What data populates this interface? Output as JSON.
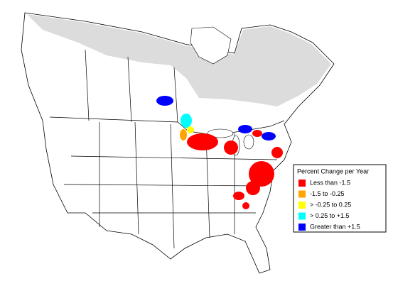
{
  "legend": {
    "title": "Percent Change per Year",
    "entries": [
      {
        "label": "Less than -1.5",
        "color": "#ff0000"
      },
      {
        "label": "-1.5 to -0.25",
        "color": "#ffa500"
      },
      {
        "label": "> -0.25 to 0.25",
        "color": "#ffff00"
      },
      {
        "label": "> 0.25 to +1.5",
        "color": "#00ffff"
      },
      {
        "label": "Greater than +1.5",
        "color": "#0000ff"
      }
    ]
  }
}
